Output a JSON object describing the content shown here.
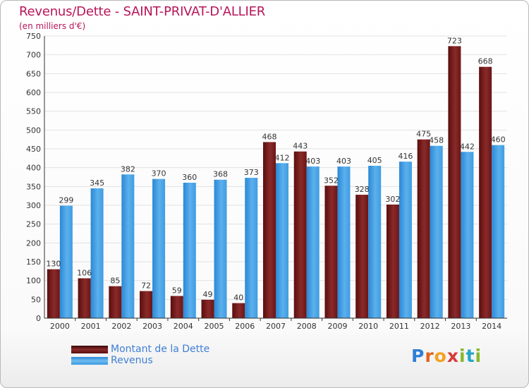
{
  "colors": {
    "title": "#b8155a",
    "debt": "#7a1f1f",
    "revenue": "#3b98e0",
    "legend_text": "#3f7fd6",
    "grid": "#e2e2e2",
    "axis": "#333333"
  },
  "logo": {
    "text": "Proxiti",
    "letter_colors": [
      "#2f7fd6",
      "#e0641d",
      "#f3a11f",
      "#d63a3a",
      "#84b82a",
      "#23a6c9",
      "#84b82a"
    ]
  },
  "chart_data": {
    "type": "bar",
    "title": "Revenus/Dette - SAINT-PRIVAT-D'ALLIER",
    "subtitle": "(en milliers d'€)",
    "categories": [
      "2000",
      "2001",
      "2002",
      "2003",
      "2004",
      "2005",
      "2006",
      "2007",
      "2008",
      "2009",
      "2010",
      "2011",
      "2012",
      "2013",
      "2014"
    ],
    "series": [
      {
        "name": "Montant de la Dette",
        "color": "#7a1f1f",
        "values": [
          130,
          106,
          85,
          72,
          59,
          49,
          40,
          468,
          443,
          352,
          328,
          302,
          475,
          723,
          668
        ]
      },
      {
        "name": "Revenus",
        "color": "#3b98e0",
        "values": [
          299,
          345,
          382,
          370,
          360,
          368,
          373,
          412,
          403,
          403,
          405,
          416,
          458,
          442,
          460
        ]
      }
    ],
    "ylim": [
      0,
      750
    ],
    "yticks": [
      0,
      50,
      100,
      150,
      200,
      250,
      300,
      350,
      400,
      450,
      500,
      550,
      600,
      650,
      700,
      750
    ],
    "grid": true,
    "legend_position": "bottom-left"
  }
}
